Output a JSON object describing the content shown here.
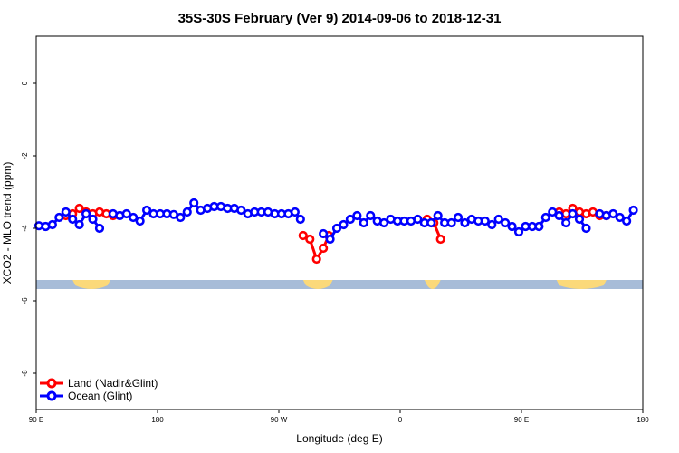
{
  "chart_data": {
    "type": "line",
    "title": "35S-30S February (Ver 9)   2014-09-06 to 2018-12-31",
    "xlabel": "Longitude (deg E)",
    "ylabel": "XCO2 - MLO trend (ppm)",
    "x_ticks": [
      {
        "lon": -270,
        "label": "90 E"
      },
      {
        "lon": -180,
        "label": "180"
      },
      {
        "lon": -90,
        "label": "90 W"
      },
      {
        "lon": 0,
        "label": "0"
      },
      {
        "lon": 90,
        "label": "90 E"
      },
      {
        "lon": 180,
        "label": "180"
      }
    ],
    "y_ticks": [
      0,
      -2,
      -4,
      -6,
      -8
    ],
    "xlim": [
      -270,
      180
    ],
    "ylim": [
      -9,
      1.3
    ],
    "grid": false,
    "legend_position": "bottom-left",
    "land_band": {
      "y": -5.55,
      "ocean_color": "#a7bcd8",
      "land_color": "#fbd97a",
      "land_spans": [
        [
          -243,
          -215
        ],
        [
          -72,
          -50
        ],
        [
          18,
          30
        ],
        [
          116,
          153
        ]
      ]
    },
    "series": [
      {
        "name": "Land (Nadir&Glint)",
        "color": "#ff0000",
        "segments": [
          [
            [
              -248,
              -3.65
            ],
            [
              -243,
              -3.6
            ],
            [
              -238,
              -3.45
            ],
            [
              -233,
              -3.55
            ],
            [
              -228,
              -3.6
            ],
            [
              -223,
              -3.55
            ],
            [
              -218,
              -3.6
            ],
            [
              -213,
              -3.65
            ]
          ],
          [
            [
              -72,
              -4.2
            ],
            [
              -67,
              -4.3
            ],
            [
              -62,
              -4.85
            ],
            [
              -57,
              -4.55
            ],
            [
              -53,
              -4.2
            ]
          ],
          [
            [
              20,
              -3.75
            ],
            [
              25,
              -3.85
            ],
            [
              30,
              -4.3
            ]
          ],
          [
            [
              118,
              -3.55
            ],
            [
              123,
              -3.6
            ],
            [
              128,
              -3.45
            ],
            [
              133,
              -3.55
            ],
            [
              138,
              -3.6
            ],
            [
              143,
              -3.55
            ],
            [
              148,
              -3.65
            ],
            [
              153,
              -3.65
            ]
          ]
        ]
      },
      {
        "name": "Ocean (Glint)",
        "color": "#0000ff",
        "segments": [
          [
            [
              -268,
              -3.93
            ],
            [
              -263,
              -3.95
            ],
            [
              -258,
              -3.9
            ],
            [
              -253,
              -3.7
            ],
            [
              -248,
              -3.55
            ],
            [
              -243,
              -3.75
            ],
            [
              -238,
              -3.9
            ],
            [
              -233,
              -3.6
            ],
            [
              -228,
              -3.75
            ],
            [
              -223,
              -4
            ]
          ],
          [
            [
              -213,
              -3.6
            ],
            [
              -208,
              -3.65
            ],
            [
              -203,
              -3.6
            ],
            [
              -198,
              -3.7
            ],
            [
              -193,
              -3.8
            ],
            [
              -188,
              -3.5
            ],
            [
              -183,
              -3.6
            ],
            [
              -178,
              -3.6
            ],
            [
              -173,
              -3.6
            ],
            [
              -168,
              -3.62
            ],
            [
              -163,
              -3.7
            ],
            [
              -158,
              -3.55
            ],
            [
              -153,
              -3.3
            ],
            [
              -148,
              -3.5
            ],
            [
              -143,
              -3.45
            ],
            [
              -138,
              -3.4
            ],
            [
              -133,
              -3.4
            ],
            [
              -128,
              -3.45
            ],
            [
              -123,
              -3.45
            ],
            [
              -118,
              -3.5
            ],
            [
              -113,
              -3.6
            ],
            [
              -108,
              -3.55
            ],
            [
              -103,
              -3.55
            ],
            [
              -98,
              -3.55
            ],
            [
              -93,
              -3.6
            ],
            [
              -88,
              -3.6
            ],
            [
              -83,
              -3.6
            ],
            [
              -78,
              -3.55
            ],
            [
              -74,
              -3.75
            ]
          ],
          [
            [
              -57,
              -4.15
            ],
            [
              -52,
              -4.3
            ],
            [
              -47,
              -4
            ],
            [
              -42,
              -3.9
            ],
            [
              -37,
              -3.75
            ],
            [
              -32,
              -3.65
            ],
            [
              -27,
              -3.85
            ],
            [
              -22,
              -3.65
            ],
            [
              -17,
              -3.8
            ],
            [
              -12,
              -3.85
            ],
            [
              -7,
              -3.75
            ],
            [
              -2,
              -3.8
            ],
            [
              3,
              -3.8
            ],
            [
              8,
              -3.8
            ],
            [
              13,
              -3.75
            ],
            [
              18,
              -3.85
            ],
            [
              23,
              -3.85
            ],
            [
              28,
              -3.65
            ],
            [
              33,
              -3.85
            ],
            [
              38,
              -3.85
            ],
            [
              43,
              -3.7
            ],
            [
              48,
              -3.85
            ],
            [
              53,
              -3.75
            ],
            [
              58,
              -3.8
            ],
            [
              63,
              -3.8
            ],
            [
              68,
              -3.9
            ],
            [
              73,
              -3.75
            ],
            [
              78,
              -3.85
            ],
            [
              83,
              -3.95
            ],
            [
              88,
              -4.1
            ],
            [
              93,
              -3.95
            ],
            [
              98,
              -3.95
            ],
            [
              103,
              -3.95
            ],
            [
              108,
              -3.7
            ],
            [
              113,
              -3.55
            ],
            [
              118,
              -3.65
            ],
            [
              123,
              -3.85
            ],
            [
              128,
              -3.6
            ],
            [
              133,
              -3.75
            ],
            [
              138,
              -4
            ]
          ],
          [
            [
              148,
              -3.6
            ],
            [
              153,
              -3.65
            ],
            [
              158,
              -3.6
            ],
            [
              163,
              -3.7
            ],
            [
              168,
              -3.8
            ],
            [
              173,
              -3.5
            ]
          ]
        ]
      }
    ]
  }
}
